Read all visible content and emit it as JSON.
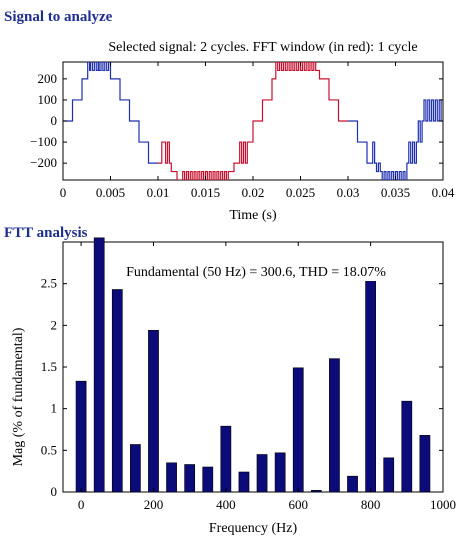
{
  "panel1": {
    "heading": "Signal to analyze"
  },
  "panel2": {
    "heading": "FTT analysis"
  },
  "colors": {
    "heading": "#1f2f8f",
    "signal_blue": "#1f2fb0",
    "signal_red": "#c8102e",
    "bar": "#0b0b7a",
    "axis": "#000000"
  },
  "chart_data": [
    {
      "type": "line",
      "title": "Selected signal: 2 cycles. FFT window (in red): 1 cycle",
      "xlabel": "Time (s)",
      "ylabel": "",
      "xlim": [
        0,
        0.04
      ],
      "ylim": [
        -280,
        280
      ],
      "xticks": [
        0,
        0.005,
        0.01,
        0.015,
        0.02,
        0.025,
        0.03,
        0.035,
        0.04
      ],
      "xtick_labels": [
        "0",
        "0.005",
        "0.01",
        "0.015",
        "0.02",
        "0.025",
        "0.03",
        "0.035",
        "0.04"
      ],
      "yticks": [
        -200,
        -100,
        0,
        100,
        200
      ],
      "ytick_labels": [
        "−200",
        "−100",
        "0",
        "100",
        "200"
      ],
      "series": [
        {
          "segment": "before-window",
          "color": "#1f2fb0",
          "x": [
            0.0,
            0.0002,
            0.0005,
            0.001,
            0.001,
            0.002,
            0.002,
            0.0026,
            0.0026,
            0.0028,
            0.0028,
            0.0029,
            0.0029,
            0.0031,
            0.0031,
            0.0033,
            0.0033,
            0.0035,
            0.0035,
            0.0037,
            0.0037,
            0.0038,
            0.0038,
            0.004,
            0.004,
            0.0042,
            0.0042,
            0.0044,
            0.0044,
            0.0046,
            0.0046,
            0.0048,
            0.0048,
            0.005,
            0.005,
            0.006,
            0.006,
            0.007,
            0.007,
            0.008,
            0.008,
            0.009,
            0.009,
            0.01
          ],
          "y": [
            0,
            0,
            0,
            0,
            100,
            100,
            200,
            200,
            280,
            280,
            240,
            240,
            280,
            280,
            240,
            240,
            280,
            280,
            240,
            240,
            280,
            280,
            240,
            240,
            280,
            280,
            240,
            240,
            280,
            280,
            240,
            240,
            280,
            280,
            200,
            200,
            100,
            100,
            0,
            0,
            -100,
            -100,
            -200,
            -200
          ]
        },
        {
          "segment": "fft-window",
          "color": "#c8102e",
          "x": [
            0.01,
            0.0104,
            0.0104,
            0.0108,
            0.0108,
            0.011,
            0.011,
            0.0112,
            0.0112,
            0.0114,
            0.0114,
            0.012,
            0.012,
            0.0126,
            0.0126,
            0.0128,
            0.0128,
            0.013,
            0.013,
            0.0132,
            0.0132,
            0.0134,
            0.0134,
            0.0136,
            0.0136,
            0.0138,
            0.0138,
            0.014,
            0.014,
            0.0142,
            0.0142,
            0.0144,
            0.0144,
            0.0146,
            0.0146,
            0.0148,
            0.0148,
            0.015,
            0.015,
            0.0152,
            0.0152,
            0.0154,
            0.0154,
            0.0156,
            0.0156,
            0.0158,
            0.0158,
            0.016,
            0.016,
            0.0162,
            0.0162,
            0.0164,
            0.0164,
            0.0166,
            0.0166,
            0.0168,
            0.0168,
            0.017,
            0.017,
            0.0172,
            0.0172,
            0.0174,
            0.0174,
            0.018,
            0.018,
            0.0186,
            0.0186,
            0.0188,
            0.0188,
            0.019,
            0.019,
            0.0192,
            0.0192,
            0.0194,
            0.0194,
            0.02,
            0.02,
            0.021,
            0.021,
            0.022,
            0.022,
            0.0224,
            0.0224,
            0.0226,
            0.0226,
            0.0228,
            0.0228,
            0.023,
            0.023,
            0.0232,
            0.0232,
            0.0234,
            0.0234,
            0.0236,
            0.0236,
            0.0238,
            0.0238,
            0.024,
            0.024,
            0.0242,
            0.0242,
            0.0244,
            0.0244,
            0.0246,
            0.0246,
            0.0248,
            0.0248,
            0.025,
            0.025,
            0.0252,
            0.0252,
            0.0254,
            0.0254,
            0.0256,
            0.0256,
            0.0258,
            0.0258,
            0.026,
            0.026,
            0.0262,
            0.0262,
            0.0264,
            0.0264,
            0.0266,
            0.0266,
            0.027,
            0.027,
            0.028,
            0.028,
            0.029,
            0.029,
            0.03
          ],
          "y": [
            -200,
            -200,
            -100,
            -100,
            -200,
            -200,
            -100,
            -100,
            -200,
            -200,
            -240,
            -240,
            -280,
            -280,
            -240,
            -240,
            -280,
            -280,
            -240,
            -240,
            -280,
            -280,
            -240,
            -240,
            -280,
            -280,
            -240,
            -240,
            -280,
            -280,
            -240,
            -240,
            -280,
            -280,
            -240,
            -240,
            -280,
            -280,
            -240,
            -240,
            -280,
            -280,
            -240,
            -240,
            -280,
            -280,
            -240,
            -240,
            -280,
            -280,
            -240,
            -240,
            -280,
            -280,
            -240,
            -240,
            -280,
            -280,
            -240,
            -240,
            -280,
            -280,
            -240,
            -240,
            -200,
            -200,
            -100,
            -100,
            -200,
            -200,
            -100,
            -100,
            -200,
            -200,
            -100,
            -100,
            0,
            0,
            100,
            100,
            200,
            200,
            280,
            280,
            240,
            240,
            280,
            280,
            240,
            240,
            280,
            280,
            240,
            240,
            280,
            280,
            240,
            240,
            280,
            280,
            240,
            240,
            280,
            280,
            240,
            240,
            280,
            280,
            240,
            240,
            280,
            280,
            240,
            240,
            280,
            280,
            240,
            240,
            280,
            280,
            240,
            240,
            280,
            280,
            240,
            240,
            200,
            200,
            100,
            100,
            0,
            0
          ]
        },
        {
          "segment": "after-window",
          "color": "#1f2fb0",
          "x": [
            0.03,
            0.031,
            0.031,
            0.032,
            0.032,
            0.0326,
            0.0326,
            0.0328,
            0.0328,
            0.033,
            0.033,
            0.0332,
            0.0332,
            0.0334,
            0.0334,
            0.0336,
            0.0336,
            0.0338,
            0.0338,
            0.034,
            0.034,
            0.0342,
            0.0342,
            0.0344,
            0.0344,
            0.0346,
            0.0346,
            0.0348,
            0.0348,
            0.035,
            0.035,
            0.0352,
            0.0352,
            0.0354,
            0.0354,
            0.0356,
            0.0356,
            0.0358,
            0.0358,
            0.036,
            0.036,
            0.0362,
            0.0362,
            0.0364,
            0.0364,
            0.0366,
            0.0366,
            0.0368,
            0.0368,
            0.037,
            0.037,
            0.0372,
            0.0372,
            0.0374,
            0.0374,
            0.0376,
            0.0376,
            0.0378,
            0.0378,
            0.038,
            0.038,
            0.0382,
            0.0382,
            0.0384,
            0.0384,
            0.0386,
            0.0386,
            0.0388,
            0.0388,
            0.039,
            0.039,
            0.0392,
            0.0392,
            0.0394,
            0.0394,
            0.0396,
            0.0396,
            0.0398,
            0.0398,
            0.04
          ],
          "y": [
            0,
            0,
            -100,
            -100,
            -200,
            -200,
            -100,
            -100,
            -200,
            -200,
            -240,
            -240,
            -200,
            -200,
            -240,
            -240,
            -280,
            -280,
            -240,
            -240,
            -280,
            -280,
            -240,
            -240,
            -280,
            -280,
            -240,
            -240,
            -280,
            -280,
            -240,
            -240,
            -280,
            -280,
            -240,
            -240,
            -280,
            -280,
            -240,
            -240,
            -280,
            -280,
            -200,
            -200,
            -100,
            -100,
            -200,
            -200,
            -100,
            -100,
            -200,
            -200,
            -100,
            -100,
            0,
            0,
            -100,
            -100,
            0,
            0,
            100,
            100,
            0,
            0,
            100,
            100,
            0,
            0,
            100,
            100,
            0,
            0,
            100,
            100,
            0,
            0,
            100,
            100,
            0,
            0
          ]
        }
      ]
    },
    {
      "type": "bar",
      "title": "Fundamental (50 Hz) = 300.6, THD = 18.07%",
      "xlabel": "Frequency (Hz)",
      "ylabel": "Mag (% of fundamental)",
      "xlim": [
        -50,
        1000
      ],
      "ylim": [
        0,
        3.0
      ],
      "xticks": [
        0,
        200,
        400,
        600,
        800,
        1000
      ],
      "yticks": [
        0,
        0.5,
        1,
        1.5,
        2,
        2.5
      ],
      "ytick_labels": [
        "0",
        "0.5",
        "1",
        "1.5",
        "2",
        "2.5"
      ],
      "x": [
        0,
        50,
        100,
        150,
        200,
        250,
        300,
        350,
        400,
        450,
        500,
        550,
        600,
        650,
        700,
        750,
        800,
        850,
        900,
        950
      ],
      "values": [
        1.33,
        3.05,
        2.43,
        0.57,
        1.94,
        0.35,
        0.33,
        0.3,
        0.79,
        0.24,
        0.45,
        0.47,
        1.49,
        0.02,
        1.6,
        0.19,
        2.58,
        0.41,
        1.09,
        0.68
      ],
      "bar_width_hz": 28
    }
  ]
}
